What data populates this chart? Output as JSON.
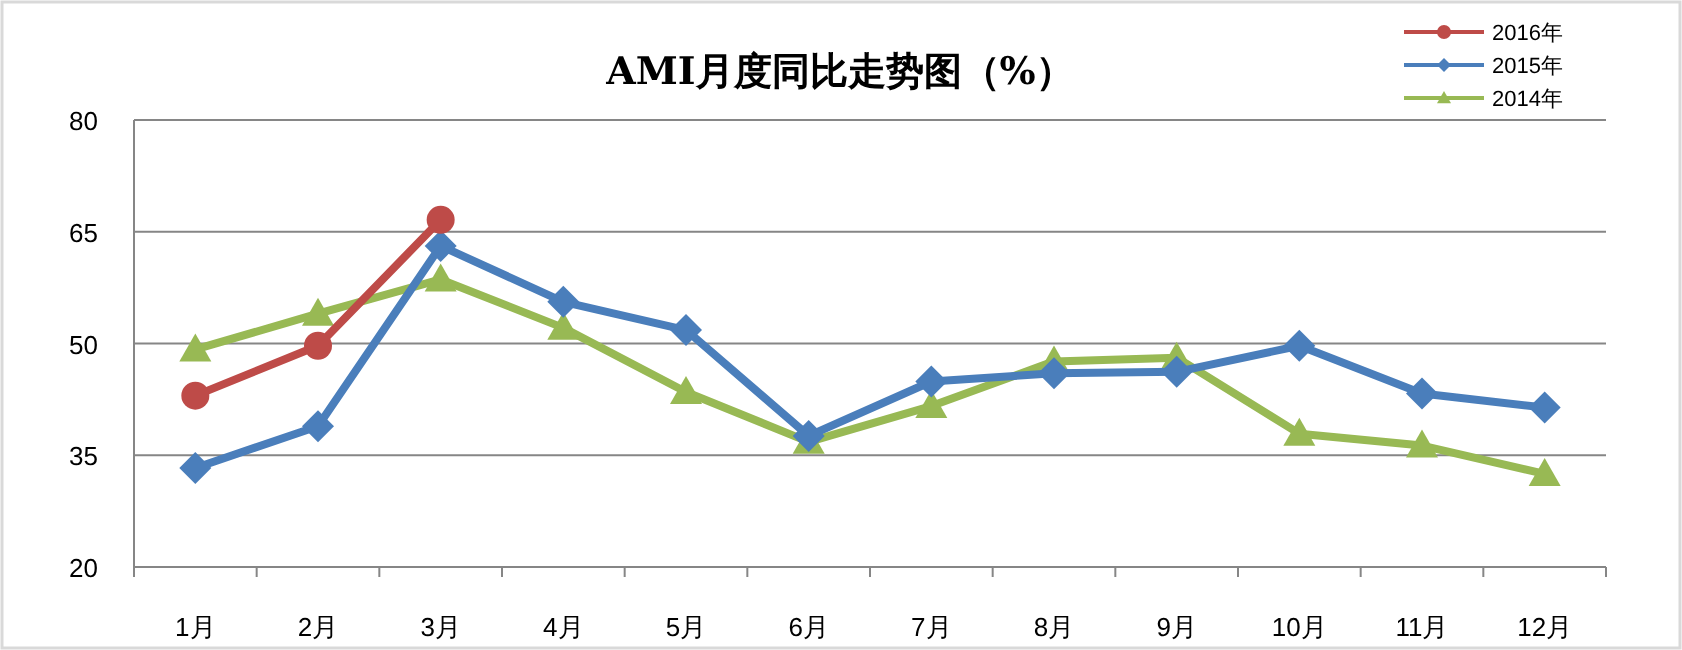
{
  "chart_data": {
    "type": "line",
    "title": "AMI月度同比走势图（%）",
    "categories": [
      "1月",
      "2月",
      "3月",
      "4月",
      "5月",
      "6月",
      "7月",
      "8月",
      "9月",
      "10月",
      "11月",
      "12月"
    ],
    "series": [
      {
        "name": "2016年",
        "color": "#be4b48",
        "marker": "circle",
        "values": [
          43.0,
          49.7,
          66.6,
          null,
          null,
          null,
          null,
          null,
          null,
          null,
          null,
          null
        ]
      },
      {
        "name": "2015年",
        "color": "#4a7ebb",
        "marker": "diamond",
        "values": [
          33.3,
          38.9,
          63.1,
          55.6,
          51.8,
          37.6,
          44.9,
          46.0,
          46.2,
          49.7,
          43.3,
          41.4
        ]
      },
      {
        "name": "2014年",
        "color": "#98b954",
        "marker": "triangle",
        "values": [
          49.2,
          54.0,
          58.6,
          52.1,
          43.5,
          36.8,
          41.6,
          47.6,
          48.1,
          37.9,
          36.3,
          32.5
        ]
      }
    ],
    "ylim": [
      20,
      80
    ],
    "yticks": [
      20,
      35,
      50,
      65,
      80
    ],
    "grid": "y",
    "legend": "top right",
    "line_style": "solid"
  }
}
